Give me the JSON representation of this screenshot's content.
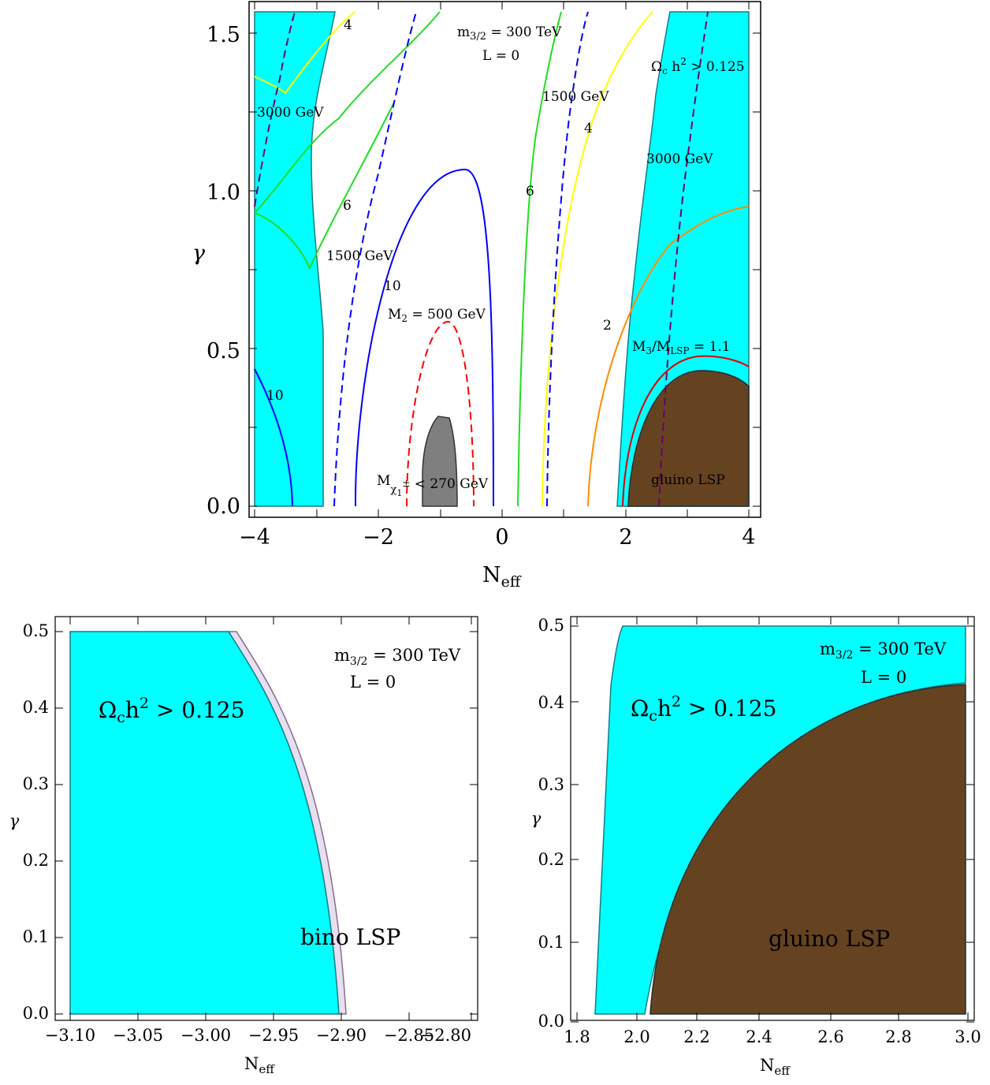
{
  "chart_data": [
    {
      "type": "contour",
      "xlabel": "N_eff",
      "ylabel": "γ",
      "xlim": [
        -4,
        4
      ],
      "ylim": [
        0,
        1.57
      ],
      "x_ticks": [
        "−4",
        "−2",
        "0",
        "2",
        "4"
      ],
      "y_ticks": [
        "0.0",
        "0.5",
        "1.0",
        "1.5"
      ],
      "annotations": {
        "params_1": "m3/2 = 300 TeV",
        "params_2": "L = 0",
        "relic": "Ωc h² > 0.125",
        "gluino_lsp": "gluino LSP",
        "m3_ratio": "M3/MLSP = 1.1",
        "m2_line": "M2 = 500 GeV",
        "chargino_bound": "Mχ1± < 270 GeV",
        "gev_3000_left": "3000 GeV",
        "gev_1500_left": "1500 GeV",
        "gev_1500_right": "1500 GeV",
        "gev_3000_right": "3000 GeV",
        "c4_left": "4",
        "c6_left": "6",
        "c10_mid": "10",
        "c10_left": "10",
        "c6_right": "6",
        "c4_right": "4",
        "c2_right": "2"
      },
      "colors": {
        "excluded_relic": "#00ffff",
        "gluino_lsp": "#654321",
        "chargino_excluded": "#7f7f7f",
        "contour_10": "#0000ff",
        "contour_6": "#00dd00",
        "contour_4": "#ffff00",
        "contour_2": "#ff8c00",
        "m2_500": "#ff0000",
        "m3_ratio": "#dd0000",
        "gev_3000": "#6a006a",
        "gev_1500": "#0000ff"
      }
    },
    {
      "type": "region",
      "xlabel": "N_eff",
      "ylabel": "γ",
      "xlim": [
        -3.1,
        -2.8
      ],
      "ylim": [
        0,
        0.5
      ],
      "x_ticks": [
        "−3.10",
        "−3.05",
        "−3.00",
        "−2.95",
        "−2.90",
        "−2.85",
        "−2.80"
      ],
      "y_ticks": [
        "0.0",
        "0.1",
        "0.2",
        "0.3",
        "0.4",
        "0.5"
      ],
      "annotations": {
        "params_1": "m3/2 = 300 TeV",
        "params_2": "L = 0",
        "relic": "Ωch² > 0.125",
        "bino_lsp": "bino LSP"
      },
      "colors": {
        "excluded_relic": "#00ffff",
        "bino_lsp": "#e6dff0"
      }
    },
    {
      "type": "region",
      "xlabel": "N_eff",
      "ylabel": "γ",
      "xlim": [
        1.75,
        3.0
      ],
      "ylim": [
        0,
        0.5
      ],
      "x_ticks": [
        "1.8",
        "2.0",
        "2.2",
        "2.4",
        "2.6",
        "2.8",
        "3.0"
      ],
      "y_ticks": [
        "0.0",
        "0.1",
        "0.2",
        "0.3",
        "0.4",
        "0.5"
      ],
      "annotations": {
        "params_1": "m3/2 = 300 TeV",
        "params_2": "L = 0",
        "relic": "Ωch² > 0.125",
        "gluino_lsp": "gluino LSP"
      },
      "colors": {
        "excluded_relic": "#00ffff",
        "gluino_lsp": "#654321"
      }
    }
  ]
}
